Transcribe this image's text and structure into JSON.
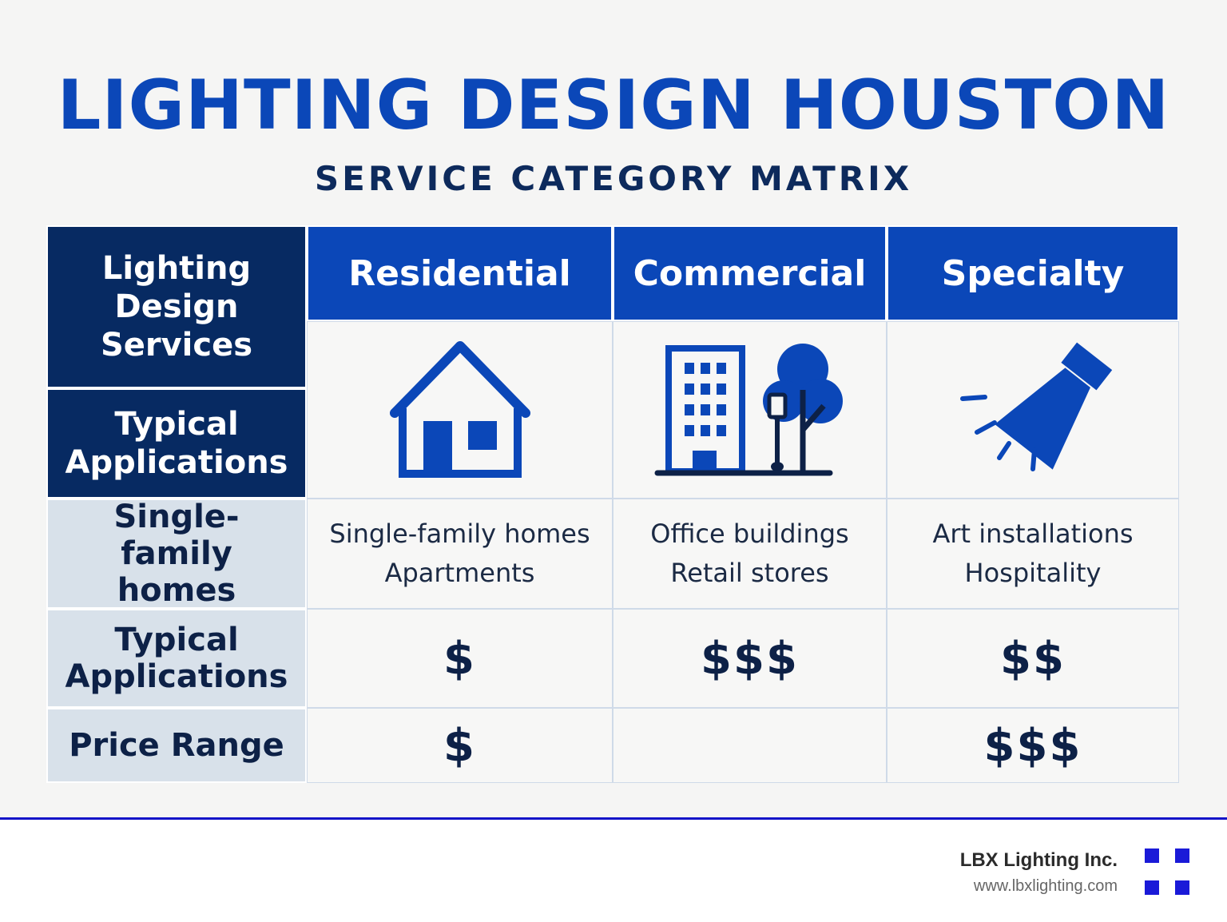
{
  "title": "LIGHTING DESIGN HOUSTON",
  "subtitle": "SERVICE CATEGORY MATRIX",
  "matrix": {
    "corner_label": "Lighting Design Services",
    "columns": [
      "Residential",
      "Commercial",
      "Specialty"
    ],
    "icons": [
      "house-icon",
      "office-building-with-tree-icon",
      "spotlight-icon"
    ],
    "typical_applications_label_1": "Typical Applications",
    "row_single_family_label": "Single-family homes",
    "applications": [
      [
        "Single-family homes",
        "Apartments"
      ],
      [
        "Office buildings",
        "Retail stores"
      ],
      [
        "Art installations",
        "Hospitality"
      ]
    ],
    "typical_applications_label_2": "Typical Applications",
    "row_typical_values": [
      "$",
      "$$$",
      "$$"
    ],
    "price_range_label": "Price Range",
    "row_price_values": [
      "$",
      "",
      "$$$"
    ]
  },
  "footer": {
    "company": "LBX Lighting Inc.",
    "website": "www.lbxlighting.com"
  },
  "colors": {
    "primary_blue": "#0b47b8",
    "navy": "#072a62",
    "label_bg": "#d8e1ea",
    "footer_rule": "#1414c8"
  }
}
